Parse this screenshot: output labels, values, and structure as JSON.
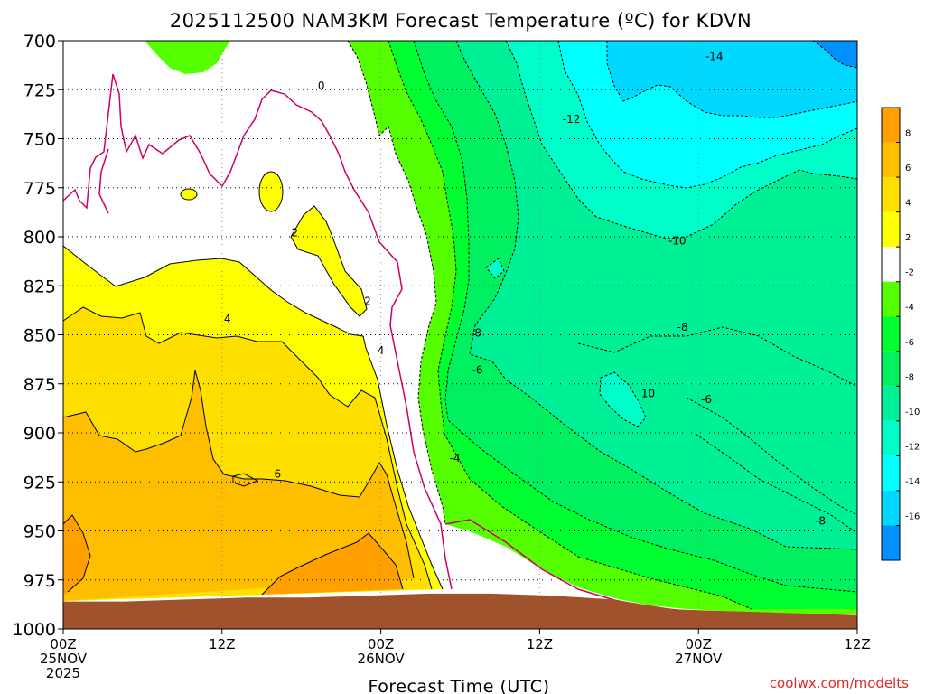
{
  "chart_data": {
    "type": "heatmap",
    "title": "2025112500 NAM3KM Forecast Temperature (ºC) for KDVN",
    "xlabel": "Forecast Time (UTC)",
    "ylabel": "",
    "x_range_hours": [
      0,
      60
    ],
    "ylim": [
      700,
      1000
    ],
    "y_ticks": [
      {
        "value": 700,
        "label": "700"
      },
      {
        "value": 725,
        "label": "725"
      },
      {
        "value": 750,
        "label": "750"
      },
      {
        "value": 775,
        "label": "775"
      },
      {
        "value": 800,
        "label": "800"
      },
      {
        "value": 825,
        "label": "825"
      },
      {
        "value": 850,
        "label": "850"
      },
      {
        "value": 875,
        "label": "875"
      },
      {
        "value": 900,
        "label": "900"
      },
      {
        "value": 925,
        "label": "925"
      },
      {
        "value": 950,
        "label": "950"
      },
      {
        "value": 975,
        "label": "975"
      },
      {
        "value": 1000,
        "label": "1000"
      }
    ],
    "x_ticks": [
      {
        "hour": 0,
        "lines": [
          "00Z",
          "25NOV",
          "2025"
        ]
      },
      {
        "hour": 12,
        "lines": [
          "12Z"
        ]
      },
      {
        "hour": 24,
        "lines": [
          "00Z",
          "26NOV"
        ]
      },
      {
        "hour": 36,
        "lines": [
          "12Z"
        ]
      },
      {
        "hour": 48,
        "lines": [
          "00Z",
          "27NOV"
        ]
      },
      {
        "hour": 60,
        "lines": [
          "12Z"
        ]
      }
    ],
    "grid": true,
    "colorbar": {
      "placement": "right",
      "bins": [
        {
          "from": 8,
          "to": 10,
          "color": "#ff9f00"
        },
        {
          "from": 6,
          "to": 8,
          "color": "#ffbf00"
        },
        {
          "from": 4,
          "to": 6,
          "color": "#ffdf00"
        },
        {
          "from": 2,
          "to": 4,
          "color": "#ffff00"
        },
        {
          "from": -2,
          "to": 2,
          "color": "#ffffff"
        },
        {
          "from": -4,
          "to": -2,
          "color": "#55ff00"
        },
        {
          "from": -6,
          "to": -4,
          "color": "#00ff30"
        },
        {
          "from": -8,
          "to": -6,
          "color": "#00f060"
        },
        {
          "from": -10,
          "to": -8,
          "color": "#00f098"
        },
        {
          "from": -12,
          "to": -10,
          "color": "#00ffc8"
        },
        {
          "from": -14,
          "to": -12,
          "color": "#00ffff"
        },
        {
          "from": -16,
          "to": -14,
          "color": "#00d8ff"
        },
        {
          "from": -18,
          "to": -16,
          "color": "#0090ff"
        }
      ],
      "labels": [
        "8",
        "6",
        "4",
        "2",
        "-2",
        "-4",
        "-6",
        "-8",
        "-10",
        "-12",
        "-14",
        "-16"
      ]
    },
    "contour_labels": [
      {
        "text": "0",
        "hour": 19.5,
        "level": 723
      },
      {
        "text": "2",
        "hour": 17.5,
        "level": 798
      },
      {
        "text": "4",
        "hour": 12.4,
        "level": 842
      },
      {
        "text": "2",
        "hour": 23.0,
        "level": 833
      },
      {
        "text": "4",
        "hour": 24.0,
        "level": 858
      },
      {
        "text": "6",
        "hour": 16.2,
        "level": 921
      },
      {
        "text": "-14",
        "hour": 49.2,
        "level": 708
      },
      {
        "text": "-12",
        "hour": 38.4,
        "level": 740
      },
      {
        "text": "-10",
        "hour": 46.4,
        "level": 802
      },
      {
        "text": "-8",
        "hour": 46.8,
        "level": 846
      },
      {
        "text": "-8",
        "hour": 31.2,
        "level": 849
      },
      {
        "text": "-6",
        "hour": 48.6,
        "level": 883
      },
      {
        "text": "-6",
        "hour": 31.3,
        "level": 868
      },
      {
        "text": "10",
        "hour": 44.2,
        "level": 880
      },
      {
        "text": "-4",
        "hour": 29.6,
        "level": 913
      },
      {
        "text": "-8",
        "hour": 57.2,
        "level": 945
      }
    ],
    "terrain_top_mb": [
      986,
      986,
      985,
      984,
      984,
      983,
      982,
      982,
      983,
      985,
      990,
      991,
      992,
      993
    ]
  },
  "credit": "coolwx.com/modelts"
}
